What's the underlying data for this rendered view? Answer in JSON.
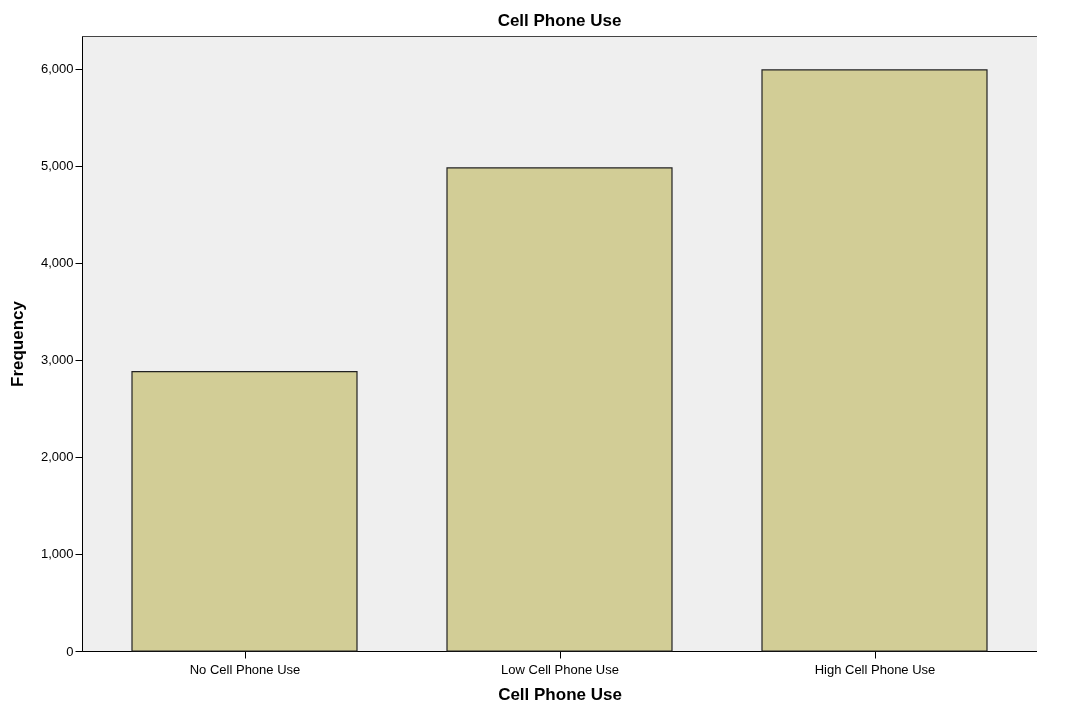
{
  "chart_data": {
    "type": "bar",
    "title": "Cell  Phone Use",
    "xlabel": "Cell  Phone Use",
    "ylabel": "Frequency",
    "categories": [
      "No Cell Phone Use",
      "Low Cell Phone Use",
      "High Cell Phone Use"
    ],
    "values": [
      2880,
      4980,
      5990
    ],
    "color": "#d2cd96",
    "ylim": [
      0,
      6340
    ],
    "yticks": [
      0,
      {
        "value": 1000,
        "label": "1,000"
      },
      {
        "value": 2000,
        "label": "2,000"
      },
      {
        "value": 3000,
        "label": "3,000"
      },
      {
        "value": 4000,
        "label": "4,000"
      },
      {
        "value": 5000,
        "label": "5,000"
      },
      {
        "value": 6000,
        "label": "6,000"
      }
    ],
    "grid": false
  }
}
